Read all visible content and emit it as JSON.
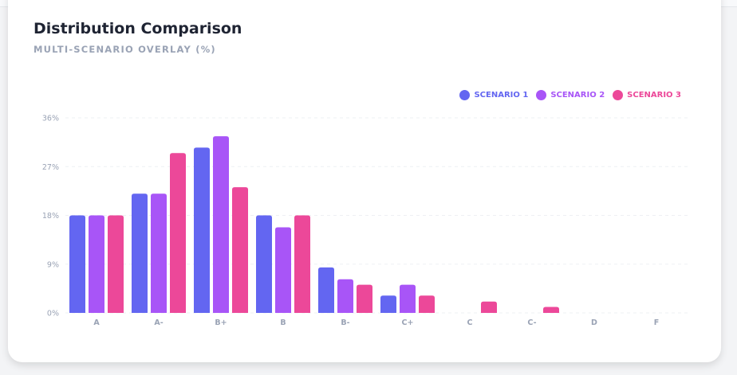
{
  "chart_data": {
    "type": "bar",
    "title": "Distribution Comparison",
    "subtitle": "MULTI-SCENARIO OVERLAY (%)",
    "categories": [
      "A",
      "A-",
      "B+",
      "B",
      "B-",
      "C+",
      "C",
      "C-",
      "D",
      "F"
    ],
    "series": [
      {
        "name": "SCENARIO 1",
        "color": "#6366f1",
        "values": [
          18,
          22,
          30.5,
          18,
          8.4,
          3.2,
          0,
          0,
          0,
          0
        ]
      },
      {
        "name": "SCENARIO 2",
        "color": "#a855f7",
        "values": [
          18,
          22,
          32.6,
          15.8,
          6.2,
          5.2,
          0,
          0,
          0,
          0
        ]
      },
      {
        "name": "SCENARIO 3",
        "color": "#ec4899",
        "values": [
          18,
          29.5,
          23.2,
          18,
          5.2,
          3.2,
          2.1,
          1.1,
          0,
          0
        ]
      }
    ],
    "yticks": [
      "0%",
      "9%",
      "18%",
      "27%",
      "36%"
    ],
    "ytick_values": [
      0,
      9,
      18,
      27,
      36
    ],
    "ylim": [
      0,
      36
    ],
    "grid": true,
    "legend": "top-right",
    "xlabel": "",
    "ylabel": ""
  }
}
